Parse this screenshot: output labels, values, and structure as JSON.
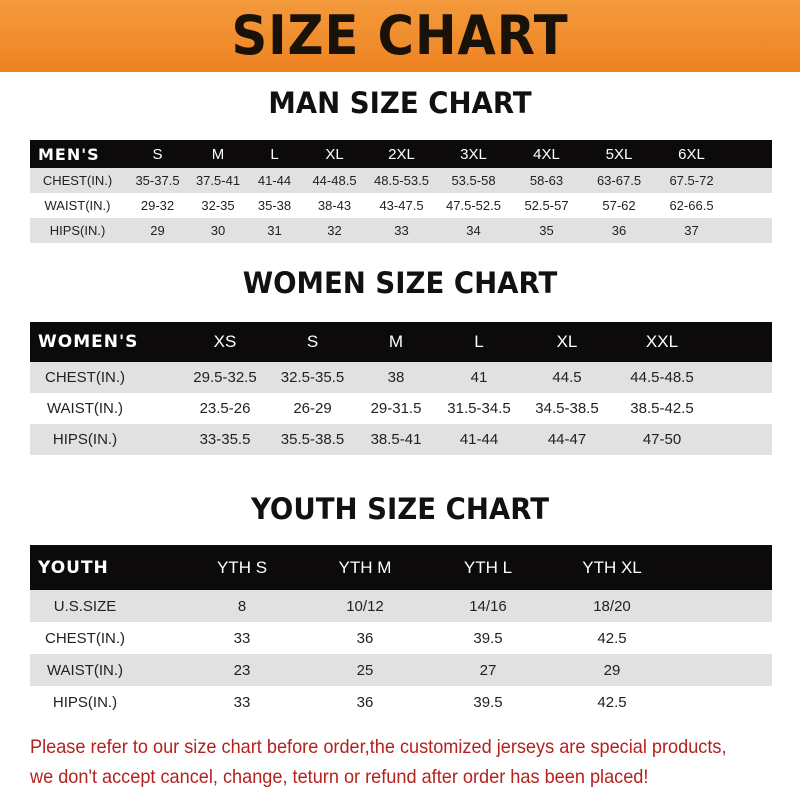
{
  "banner": {
    "title": "SIZE CHART",
    "color": "#f08a2a"
  },
  "men": {
    "title": "MAN SIZE CHART",
    "header": [
      "MEN'S",
      "S",
      "M",
      "L",
      "XL",
      "2XL",
      "3XL",
      "4XL",
      "5XL",
      "6XL"
    ],
    "rows": [
      [
        "CHEST(IN.)",
        "35-37.5",
        "37.5-41",
        "41-44",
        "44-48.5",
        "48.5-53.5",
        "53.5-58",
        "58-63",
        "63-67.5",
        "67.5-72"
      ],
      [
        "WAIST(IN.)",
        "29-32",
        "32-35",
        "35-38",
        "38-43",
        "43-47.5",
        "47.5-52.5",
        "52.5-57",
        "57-62",
        "62-66.5"
      ],
      [
        "HIPS(IN.)",
        "29",
        "30",
        "31",
        "32",
        "33",
        "34",
        "35",
        "36",
        "37"
      ]
    ]
  },
  "women": {
    "title": "WOMEN SIZE CHART",
    "header": [
      "WOMEN'S",
      "XS",
      "S",
      "M",
      "L",
      "XL",
      "XXL"
    ],
    "rows": [
      [
        "CHEST(IN.)",
        "29.5-32.5",
        "32.5-35.5",
        "38",
        "41",
        "44.5",
        "44.5-48.5"
      ],
      [
        "WAIST(IN.)",
        "23.5-26",
        "26-29",
        "29-31.5",
        "31.5-34.5",
        "34.5-38.5",
        "38.5-42.5"
      ],
      [
        "HIPS(IN.)",
        "33-35.5",
        "35.5-38.5",
        "38.5-41",
        "41-44",
        "44-47",
        "47-50"
      ]
    ]
  },
  "youth": {
    "title": "YOUTH SIZE CHART",
    "header": [
      "YOUTH",
      "YTH S",
      "YTH M",
      "YTH L",
      "YTH XL"
    ],
    "rows": [
      [
        "U.S.SIZE",
        "8",
        "10/12",
        "14/16",
        "18/20"
      ],
      [
        "CHEST(IN.)",
        "33",
        "36",
        "39.5",
        "42.5"
      ],
      [
        "WAIST(IN.)",
        "23",
        "25",
        "27",
        "29"
      ],
      [
        "HIPS(IN.)",
        "33",
        "36",
        "39.5",
        "42.5"
      ]
    ]
  },
  "note": {
    "line1": "Please refer to our size chart before order,the customized jerseys are special products,",
    "line2": "we don't accept cancel, change, teturn or refund after order has been placed!",
    "color": "#b3221f"
  }
}
